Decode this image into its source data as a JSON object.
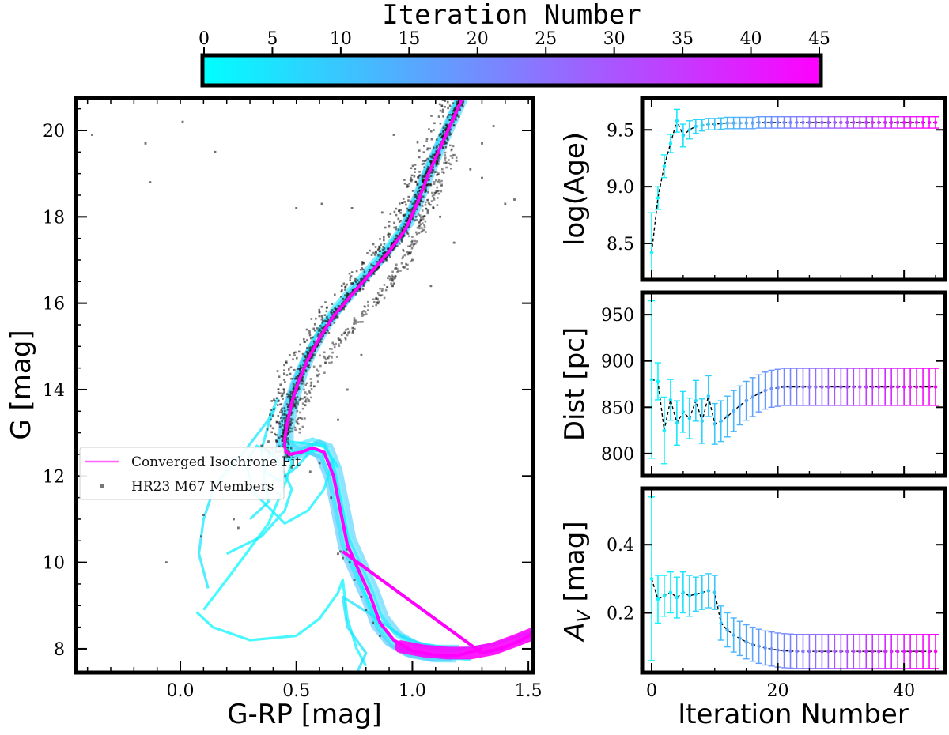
{
  "colorbar": {
    "title": "Iteration Number",
    "min": 0,
    "max": 45,
    "ticks": [
      0,
      5,
      10,
      15,
      20,
      25,
      30,
      35,
      40,
      45
    ],
    "color_start": "#00ffff",
    "color_end": "#ff00ff"
  },
  "chart_data": [
    {
      "id": "cmd",
      "type": "scatter",
      "title": "",
      "xlabel": "G-RP [mag]",
      "ylabel": "G [mag]",
      "xlim": [
        -0.45,
        1.52
      ],
      "ylim": [
        20.75,
        7.45
      ],
      "xticks": [
        0.0,
        0.5,
        1.0,
        1.5
      ],
      "xtick_labels": [
        "0.0",
        "0.5",
        "1.0",
        "1.5"
      ],
      "yticks": [
        8,
        10,
        12,
        14,
        16,
        18,
        20
      ],
      "ytick_labels": [
        "8",
        "10",
        "12",
        "14",
        "16",
        "18",
        "20"
      ],
      "legend": {
        "position": "center-left",
        "entries": [
          "Converged Isochrone Fit",
          "HR23 M67 Members"
        ]
      },
      "converged_isochrone": {
        "name": "Converged Isochrone Fit",
        "color": "#ff00ff",
        "points": [
          [
            1.22,
            20.8
          ],
          [
            1.17,
            20.2
          ],
          [
            1.12,
            19.6
          ],
          [
            1.07,
            19.0
          ],
          [
            1.02,
            18.3
          ],
          [
            0.97,
            17.7
          ],
          [
            0.9,
            17.2
          ],
          [
            0.82,
            16.7
          ],
          [
            0.74,
            16.2
          ],
          [
            0.66,
            15.7
          ],
          [
            0.6,
            15.2
          ],
          [
            0.55,
            14.7
          ],
          [
            0.51,
            14.2
          ],
          [
            0.48,
            13.7
          ],
          [
            0.46,
            13.2
          ],
          [
            0.45,
            12.85
          ],
          [
            0.45,
            12.6
          ],
          [
            0.47,
            12.5
          ],
          [
            0.52,
            12.55
          ],
          [
            0.57,
            12.65
          ],
          [
            0.62,
            12.55
          ],
          [
            0.66,
            12.0
          ],
          [
            0.69,
            11.2
          ],
          [
            0.72,
            10.4
          ],
          [
            0.77,
            9.8
          ],
          [
            0.82,
            9.2
          ],
          [
            0.86,
            8.6
          ],
          [
            0.92,
            8.2
          ],
          [
            1.0,
            7.95
          ],
          [
            1.1,
            7.85
          ],
          [
            1.2,
            7.85
          ],
          [
            1.3,
            8.0
          ],
          [
            0.7,
            10.25
          ],
          [
            1.3,
            7.9
          ],
          [
            1.38,
            8.0
          ],
          [
            1.45,
            8.15
          ],
          [
            1.52,
            8.35
          ]
        ]
      },
      "members_label": "HR23 M67 Members"
    },
    {
      "id": "age",
      "type": "line",
      "xlabel": "",
      "ylabel": "log(Age)",
      "xlim": [
        -1.5,
        46.5
      ],
      "ylim": [
        8.18,
        9.78
      ],
      "xticks": [
        0,
        20,
        40
      ],
      "yticks": [
        8.5,
        9.0,
        9.5
      ],
      "ytick_labels": [
        "8.5",
        "9.0",
        "9.5"
      ],
      "show_xticklabels": false,
      "values": [
        8.42,
        8.9,
        9.18,
        9.38,
        9.58,
        9.45,
        9.5,
        9.53,
        9.54,
        9.55,
        9.55,
        9.555,
        9.56,
        9.56,
        9.56,
        9.56,
        9.56,
        9.565,
        9.565,
        9.565,
        9.565,
        9.565,
        9.565,
        9.565,
        9.565,
        9.565,
        9.565,
        9.565,
        9.565,
        9.565,
        9.565,
        9.565,
        9.565,
        9.565,
        9.565,
        9.565,
        9.565,
        9.565,
        9.565,
        9.565,
        9.565,
        9.565,
        9.565,
        9.565,
        9.565,
        9.565
      ],
      "errors": [
        0.35,
        0.1,
        0.1,
        0.08,
        0.1,
        0.1,
        0.08,
        0.06,
        0.05,
        0.05,
        0.05,
        0.05,
        0.05,
        0.05,
        0.05,
        0.05,
        0.05,
        0.05,
        0.05,
        0.05,
        0.05,
        0.05,
        0.05,
        0.05,
        0.05,
        0.05,
        0.05,
        0.05,
        0.05,
        0.05,
        0.05,
        0.05,
        0.05,
        0.05,
        0.05,
        0.05,
        0.05,
        0.05,
        0.05,
        0.05,
        0.05,
        0.05,
        0.05,
        0.05,
        0.05,
        0.05
      ]
    },
    {
      "id": "dist",
      "type": "line",
      "xlabel": "",
      "ylabel": "Dist [pc]",
      "xlim": [
        -1.5,
        46.5
      ],
      "ylim": [
        776,
        974
      ],
      "xticks": [
        0,
        20,
        40
      ],
      "yticks": [
        800,
        850,
        900,
        950
      ],
      "ytick_labels": [
        "800",
        "850",
        "900",
        "950"
      ],
      "show_xticklabels": false,
      "values": [
        880,
        878,
        825,
        858,
        833,
        845,
        838,
        857,
        835,
        862,
        832,
        835,
        840,
        846,
        852,
        857,
        861,
        865,
        868,
        870,
        871,
        872,
        872,
        872,
        872,
        872,
        872,
        872,
        872,
        872,
        872,
        872,
        872,
        872,
        872,
        872,
        872,
        872,
        872,
        872,
        872,
        872,
        872,
        872,
        872,
        872
      ],
      "errors": [
        85,
        20,
        36,
        22,
        24,
        22,
        22,
        22,
        24,
        22,
        22,
        22,
        22,
        22,
        21,
        21,
        21,
        20,
        20,
        20,
        20,
        20,
        20,
        20,
        20,
        20,
        20,
        20,
        20,
        20,
        20,
        20,
        20,
        20,
        20,
        20,
        20,
        20,
        20,
        20,
        20,
        20,
        20,
        20,
        20,
        20
      ]
    },
    {
      "id": "av",
      "type": "line",
      "xlabel": "Iteration Number",
      "ylabel": "A_V [mag]",
      "ylabel_main": "A",
      "ylabel_sub": "V",
      "ylabel_unit": " [mag]",
      "xlim": [
        -1.5,
        46.5
      ],
      "ylim": [
        0.025,
        0.565
      ],
      "xticks": [
        0,
        20,
        40
      ],
      "xtick_labels": [
        "0",
        "20",
        "40"
      ],
      "yticks": [
        0.2,
        0.4
      ],
      "ytick_labels": [
        "0.2",
        "0.4"
      ],
      "show_xticklabels": true,
      "values": [
        0.3,
        0.24,
        0.25,
        0.26,
        0.245,
        0.26,
        0.25,
        0.255,
        0.26,
        0.265,
        0.26,
        0.17,
        0.15,
        0.135,
        0.125,
        0.115,
        0.108,
        0.102,
        0.097,
        0.094,
        0.091,
        0.089,
        0.088,
        0.087,
        0.087,
        0.087,
        0.087,
        0.087,
        0.087,
        0.087,
        0.087,
        0.087,
        0.087,
        0.087,
        0.087,
        0.087,
        0.087,
        0.087,
        0.087,
        0.087,
        0.087,
        0.087,
        0.087,
        0.087,
        0.087,
        0.087
      ],
      "errors": [
        0.24,
        0.07,
        0.06,
        0.06,
        0.06,
        0.06,
        0.06,
        0.05,
        0.05,
        0.05,
        0.05,
        0.05,
        0.05,
        0.05,
        0.05,
        0.05,
        0.05,
        0.05,
        0.05,
        0.05,
        0.05,
        0.05,
        0.05,
        0.05,
        0.05,
        0.05,
        0.05,
        0.05,
        0.05,
        0.05,
        0.05,
        0.05,
        0.05,
        0.05,
        0.05,
        0.05,
        0.05,
        0.05,
        0.05,
        0.05,
        0.05,
        0.05,
        0.05,
        0.05,
        0.05,
        0.05
      ]
    }
  ]
}
